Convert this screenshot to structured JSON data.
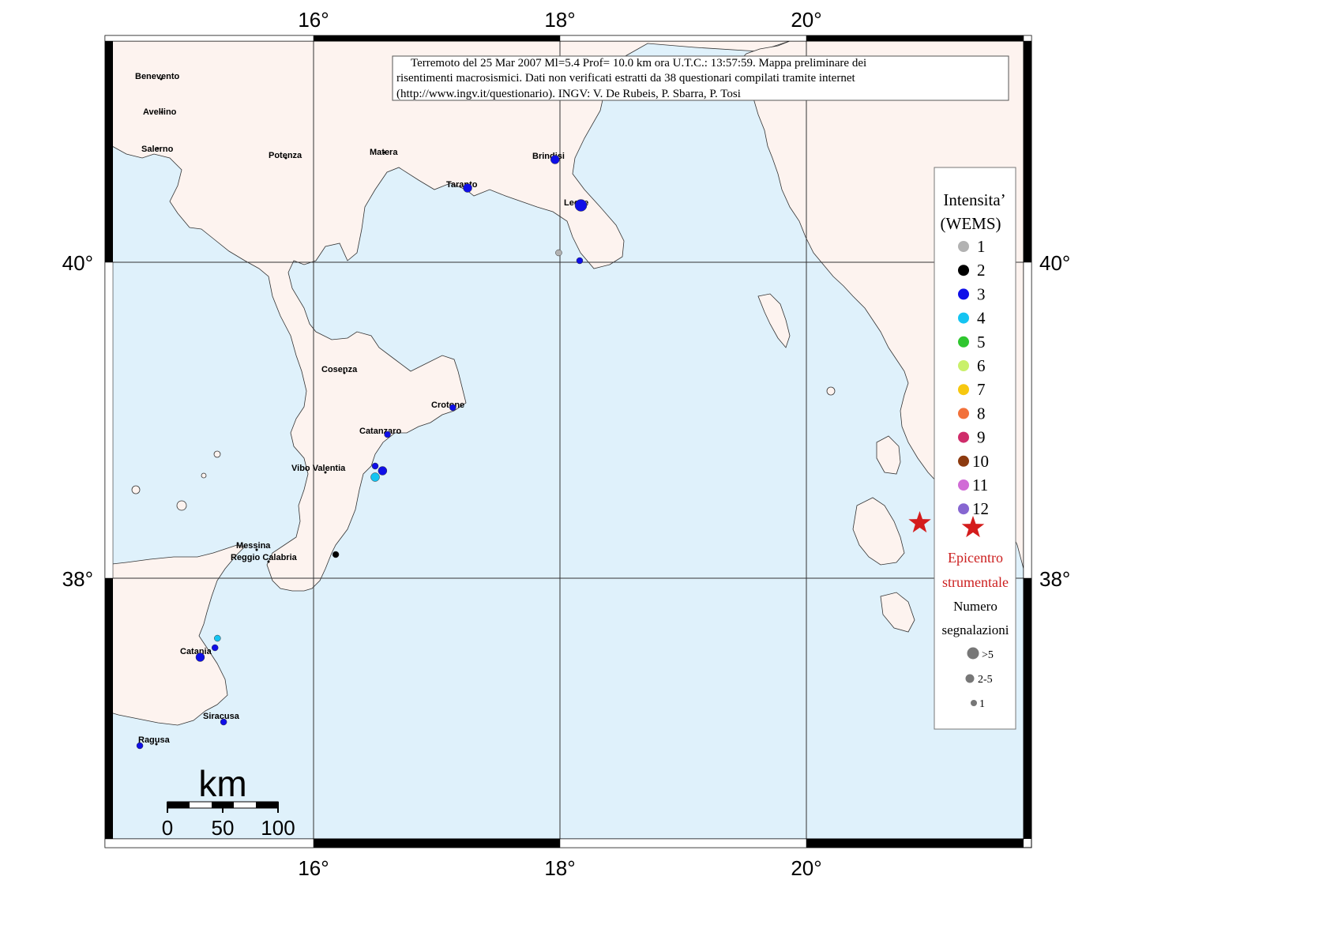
{
  "title_box": {
    "line1": "Terremoto del 25 Mar 2007 Ml=5.4 Prof= 10.0 km ora U.T.C.: 13:57:59.  Mappa preliminare dei",
    "line2": "risentimenti macrosismici.    Dati non verificati estratti da 38 questionari compilati tramite internet",
    "line3": "(http://www.ingv.it/questionario).    INGV: V.  De Rubeis, P.  Sbarra, P.  Tosi"
  },
  "axes": {
    "top_ticks": [
      "16°",
      "18°",
      "20°"
    ],
    "bottom_ticks": [
      "16°",
      "18°",
      "20°"
    ],
    "left_ticks": [
      "40°",
      "38°"
    ],
    "right_ticks": [
      "40°",
      "38°"
    ]
  },
  "colors": {
    "sea": "#dff1fb",
    "land": "#fdf3ef",
    "epicenter": "#d41c1c"
  },
  "cities": [
    {
      "name": "Benevento"
    },
    {
      "name": "Avellino"
    },
    {
      "name": "Salerno"
    },
    {
      "name": "Potenza"
    },
    {
      "name": "Matera"
    },
    {
      "name": "Brindisi"
    },
    {
      "name": "Taranto"
    },
    {
      "name": "Lecce"
    },
    {
      "name": "Cosenza"
    },
    {
      "name": "Crotone"
    },
    {
      "name": "Catanzaro"
    },
    {
      "name": "Vibo Valentia"
    },
    {
      "name": "Messina"
    },
    {
      "name": "Reggio Calabria"
    },
    {
      "name": "Catania"
    },
    {
      "name": "Siracusa"
    },
    {
      "name": "Ragusa"
    }
  ],
  "observations": [
    {
      "lon": 17.96,
      "lat": 40.65,
      "intensity": 3,
      "size": "2-5"
    },
    {
      "lon": 17.25,
      "lat": 40.47,
      "intensity": 3,
      "size": "2-5"
    },
    {
      "lon": 18.17,
      "lat": 40.36,
      "intensity": 3,
      "size": ">5"
    },
    {
      "lon": 17.99,
      "lat": 40.06,
      "intensity": 1,
      "size": "1"
    },
    {
      "lon": 18.16,
      "lat": 40.01,
      "intensity": 3,
      "size": "1"
    },
    {
      "lon": 17.13,
      "lat": 39.08,
      "intensity": 3,
      "size": "1"
    },
    {
      "lon": 16.6,
      "lat": 38.91,
      "intensity": 3,
      "size": "1"
    },
    {
      "lon": 16.5,
      "lat": 38.71,
      "intensity": 3,
      "size": "1"
    },
    {
      "lon": 16.56,
      "lat": 38.68,
      "intensity": 3,
      "size": "2-5"
    },
    {
      "lon": 16.5,
      "lat": 38.64,
      "intensity": 4,
      "size": "2-5"
    },
    {
      "lon": 16.18,
      "lat": 38.15,
      "intensity": 2,
      "size": "1"
    },
    {
      "lon": 15.22,
      "lat": 37.62,
      "intensity": 4,
      "size": "1"
    },
    {
      "lon": 15.2,
      "lat": 37.56,
      "intensity": 3,
      "size": "1"
    },
    {
      "lon": 15.08,
      "lat": 37.5,
      "intensity": 3,
      "size": "2-5"
    },
    {
      "lon": 15.27,
      "lat": 37.09,
      "intensity": 3,
      "size": "1"
    },
    {
      "lon": 14.59,
      "lat": 36.94,
      "intensity": 3,
      "size": "1"
    }
  ],
  "epicenter": {
    "lon": 20.92,
    "lat": 38.35
  },
  "legend": {
    "title_line1": "Intensita’",
    "title_line2": "(WEMS)",
    "items": [
      {
        "label": "1",
        "color": "#b2b2b2"
      },
      {
        "label": "2",
        "color": "#000000"
      },
      {
        "label": "3",
        "color": "#0f0fe8"
      },
      {
        "label": "4",
        "color": "#14c4f2"
      },
      {
        "label": "5",
        "color": "#2fc62f"
      },
      {
        "label": "6",
        "color": "#c9f06a"
      },
      {
        "label": "7",
        "color": "#f7c80f"
      },
      {
        "label": "8",
        "color": "#f2713a"
      },
      {
        "label": "9",
        "color": "#cf2c6a"
      },
      {
        "label": "10",
        "color": "#8c3a0f"
      },
      {
        "label": "11",
        "color": "#d16bd6"
      },
      {
        "label": "12",
        "color": "#8666d1"
      }
    ],
    "epicenter_line1": "Epicentro",
    "epicenter_line2": "strumentale",
    "count_line1": "Numero",
    "count_line2": "segnalazioni",
    "sizes": [
      ">5",
      "2-5",
      "1"
    ]
  },
  "scale_bar": {
    "unit": "km",
    "labels": [
      "0",
      "50",
      "100"
    ]
  }
}
